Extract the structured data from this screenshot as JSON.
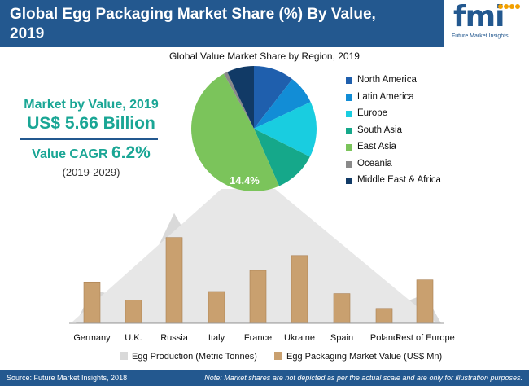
{
  "header": {
    "title": "Global Egg Packaging Market Share (%) By Value, 2019"
  },
  "logo": {
    "text": "fmi",
    "subtitle": "Future Market Insights"
  },
  "metrics": {
    "market_label": "Market by Value, 2019",
    "market_value": "US$ 5.66 Billion",
    "cagr_label": "Value CAGR",
    "cagr_value": "6.2%",
    "period": "(2019-2029)"
  },
  "chart_data": [
    {
      "type": "pie",
      "title": "Global Value Market Share by Region, 2019",
      "slices": [
        {
          "name": "North America",
          "value": 10.5,
          "color": "#1f5fad"
        },
        {
          "name": "Latin America",
          "value": 7.5,
          "color": "#128dd6"
        },
        {
          "name": "Europe",
          "value": 14.4,
          "color": "#19cde0"
        },
        {
          "name": "South Asia",
          "value": 11.0,
          "color": "#15a88a"
        },
        {
          "name": "East Asia",
          "value": 48.6,
          "color": "#7bc45b"
        },
        {
          "name": "Oceania",
          "value": 1.0,
          "color": "#8a8a8a"
        },
        {
          "name": "Middle East & Africa",
          "value": 7.0,
          "color": "#113a66"
        }
      ],
      "label": "14.4%"
    },
    {
      "type": "bar",
      "categories": [
        "Germany",
        "U.K.",
        "Russia",
        "Italy",
        "France",
        "Ukraine",
        "Spain",
        "Poland",
        "Rest of Europe"
      ],
      "series": [
        {
          "name": "Egg Production (Metric Tonnes)",
          "type": "area",
          "color": "#d9d9d9",
          "values": [
            0.62,
            0.48,
            2.08,
            0.68,
            0.7,
            0.9,
            0.45,
            0.25,
            0.55
          ]
        },
        {
          "name": "Egg Packaging Market Value (US$ Mn)",
          "type": "bar",
          "color": "#c9a06f",
          "values": [
            0.78,
            0.44,
            1.62,
            0.6,
            1.0,
            1.28,
            0.56,
            0.28,
            0.82
          ]
        }
      ]
    }
  ],
  "footer": {
    "source": "Source: Future Market Insights, 2018",
    "note": "Note: Market shares are not depicted as per the actual scale and are only for illustration purposes."
  }
}
